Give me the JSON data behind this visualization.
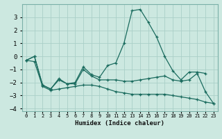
{
  "xlabel": "Humidex (Indice chaleur)",
  "background_color": "#cce8e0",
  "grid_color": "#aacfc8",
  "line_color": "#1a6b5e",
  "spine_color": "#7ab0a8",
  "x_values": [
    0,
    1,
    2,
    3,
    4,
    5,
    6,
    7,
    8,
    9,
    10,
    11,
    12,
    13,
    14,
    15,
    16,
    17,
    18,
    19,
    20,
    21,
    22,
    23
  ],
  "series": [
    [
      -0.3,
      0.0,
      -2.2,
      -2.5,
      -1.7,
      -2.1,
      -2.0,
      -0.8,
      -1.4,
      -1.6,
      -0.7,
      -0.5,
      1.0,
      3.5,
      3.6,
      2.6,
      1.5,
      0.0,
      -1.1,
      -1.8,
      -1.2,
      -1.2,
      -1.3,
      null
    ],
    [
      -0.3,
      0.0,
      -2.2,
      -2.5,
      -1.8,
      -2.1,
      -2.1,
      -1.0,
      -1.5,
      -1.8,
      -1.8,
      -1.8,
      -1.9,
      -1.9,
      -1.8,
      -1.7,
      -1.6,
      -1.5,
      -1.8,
      -1.9,
      -1.8,
      -1.3,
      -2.7,
      -3.6
    ],
    [
      -0.3,
      -0.4,
      -2.3,
      -2.6,
      -2.5,
      -2.4,
      -2.3,
      -2.2,
      -2.2,
      -2.3,
      -2.5,
      -2.7,
      -2.8,
      -2.9,
      -2.9,
      -2.9,
      -2.9,
      -2.9,
      -3.0,
      -3.1,
      -3.2,
      -3.3,
      -3.5,
      -3.6
    ]
  ],
  "ylim": [
    -4.2,
    4.0
  ],
  "yticks": [
    -4,
    -3,
    -2,
    -1,
    0,
    1,
    2,
    3
  ],
  "xlim": [
    -0.5,
    23.5
  ],
  "figsize": [
    3.2,
    2.0
  ],
  "dpi": 100
}
